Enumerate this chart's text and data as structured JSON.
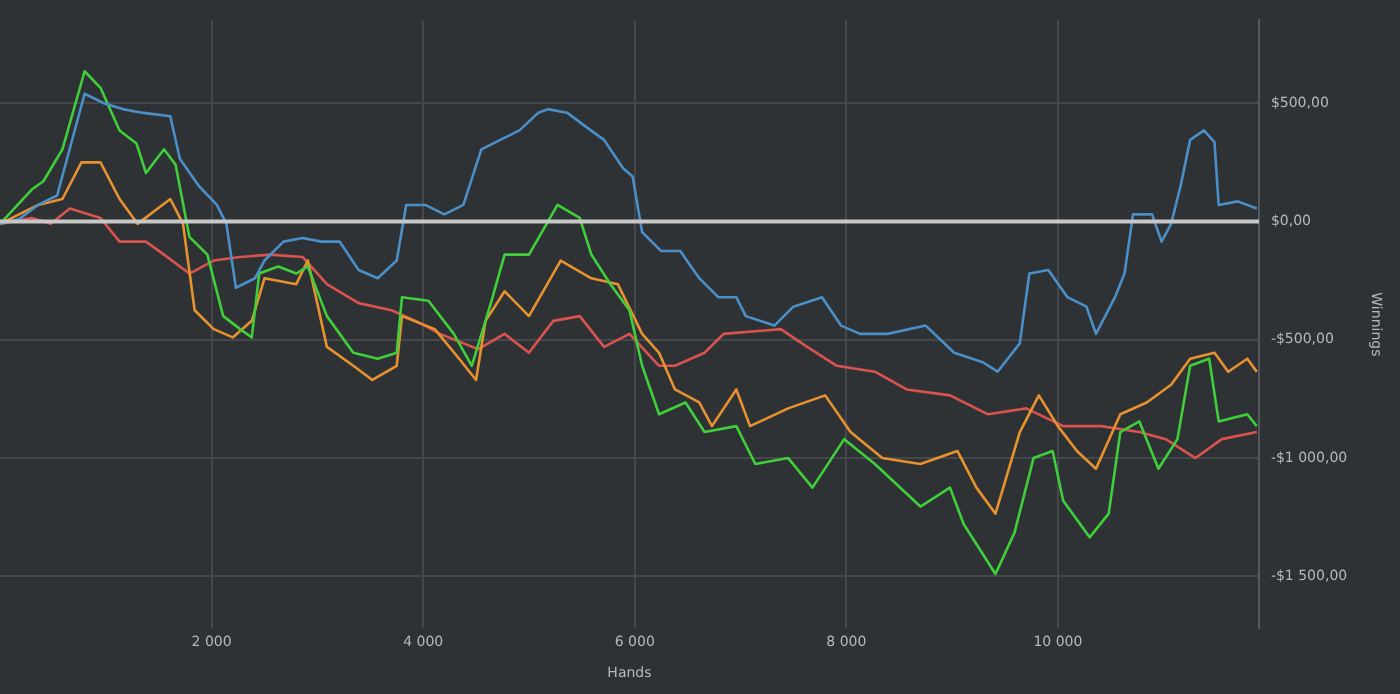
{
  "chart_data": {
    "type": "line",
    "xlabel": "Hands",
    "ylabel": "Winnings",
    "xlim": [
      0,
      11900
    ],
    "ylim": [
      -1720,
      850
    ],
    "xticks": [
      {
        "value": 2000,
        "label": "2 000"
      },
      {
        "value": 4000,
        "label": "4 000"
      },
      {
        "value": 6000,
        "label": "6 000"
      },
      {
        "value": 8000,
        "label": "8 000"
      },
      {
        "value": 10000,
        "label": "10 000"
      }
    ],
    "yticks": [
      {
        "value": -1500,
        "label": "-$1 500,00"
      },
      {
        "value": -1000,
        "label": "-$1 000,00"
      },
      {
        "value": -500,
        "label": "-$500,00"
      },
      {
        "value": 0,
        "label": "$0,00"
      },
      {
        "value": 500,
        "label": "$500,00"
      }
    ],
    "grid": true,
    "legend": false,
    "marker": "none",
    "line_style": "solid",
    "ref_lines": [
      {
        "axis": "y",
        "value": 0,
        "label": null,
        "color": "#c8c8c8"
      }
    ],
    "series": [
      {
        "color": "#4a8fc7",
        "x": [
          0,
          180,
          360,
          540,
          800,
          980,
          1160,
          1340,
          1610,
          1700,
          1880,
          2050,
          2140,
          2230,
          2410,
          2500,
          2680,
          2860,
          3040,
          3210,
          3390,
          3570,
          3750,
          3840,
          4020,
          4200,
          4380,
          4550,
          4730,
          4910,
          5090,
          5180,
          5360,
          5540,
          5710,
          5890,
          5980,
          6070,
          6250,
          6430,
          6610,
          6790,
          6960,
          7050,
          7320,
          7500,
          7770,
          7950,
          8130,
          8390,
          8750,
          9020,
          9290,
          9430,
          9640,
          9730,
          9910,
          10090,
          10270,
          10360,
          10540,
          10630,
          10710,
          10890,
          10980,
          11070,
          11160,
          11250,
          11380,
          11480,
          11520,
          11700,
          11880
        ],
        "values": [
          -10,
          10,
          70,
          110,
          540,
          500,
          475,
          460,
          445,
          265,
          150,
          70,
          -10,
          -280,
          -240,
          -165,
          -85,
          -70,
          -85,
          -85,
          -205,
          -240,
          -165,
          70,
          70,
          30,
          70,
          305,
          345,
          385,
          460,
          475,
          460,
          400,
          345,
          225,
          190,
          -45,
          -125,
          -125,
          -240,
          -320,
          -320,
          -400,
          -440,
          -360,
          -320,
          -440,
          -475,
          -475,
          -440,
          -555,
          -595,
          -635,
          -515,
          -220,
          -205,
          -320,
          -360,
          -475,
          -320,
          -220,
          30,
          30,
          -85,
          -10,
          150,
          345,
          385,
          335,
          70,
          85,
          55
        ]
      },
      {
        "color": "#3fcf3a",
        "x": [
          0,
          300,
          410,
          590,
          800,
          950,
          1130,
          1290,
          1380,
          1550,
          1660,
          1790,
          1960,
          2110,
          2270,
          2380,
          2450,
          2630,
          2800,
          2910,
          3090,
          3340,
          3570,
          3750,
          3800,
          4050,
          4290,
          4460,
          4640,
          4770,
          5000,
          5270,
          5480,
          5590,
          5770,
          5950,
          6070,
          6230,
          6480,
          6660,
          6960,
          7140,
          7450,
          7680,
          7980,
          8270,
          8700,
          8980,
          9110,
          9410,
          9590,
          9770,
          9950,
          10050,
          10300,
          10480,
          10590,
          10770,
          10950,
          11130,
          11250,
          11430,
          11520,
          11790,
          11880
        ],
        "values": [
          -10,
          135,
          170,
          305,
          635,
          565,
          385,
          330,
          205,
          305,
          240,
          -65,
          -140,
          -400,
          -455,
          -490,
          -220,
          -190,
          -220,
          -190,
          -400,
          -555,
          -580,
          -555,
          -320,
          -335,
          -475,
          -610,
          -345,
          -140,
          -140,
          70,
          15,
          -140,
          -265,
          -375,
          -610,
          -815,
          -765,
          -890,
          -865,
          -1025,
          -1000,
          -1125,
          -920,
          -1025,
          -1205,
          -1125,
          -1280,
          -1490,
          -1315,
          -1000,
          -970,
          -1180,
          -1335,
          -1235,
          -890,
          -845,
          -1045,
          -920,
          -610,
          -580,
          -845,
          -815,
          -865
        ]
      },
      {
        "color": "#e8922f",
        "x": [
          0,
          360,
          590,
          770,
          950,
          1130,
          1300,
          1610,
          1730,
          1840,
          2020,
          2200,
          2380,
          2500,
          2800,
          2910,
          3090,
          3340,
          3520,
          3750,
          3800,
          4110,
          4340,
          4500,
          4590,
          4770,
          5000,
          5300,
          5590,
          5840,
          6070,
          6230,
          6380,
          6610,
          6730,
          6960,
          7090,
          7450,
          7800,
          8040,
          8340,
          8700,
          9050,
          9230,
          9410,
          9640,
          9820,
          10000,
          10180,
          10360,
          10590,
          10840,
          11070,
          11250,
          11480,
          11610,
          11790,
          11880
        ],
        "values": [
          -10,
          70,
          95,
          250,
          250,
          95,
          -10,
          95,
          -10,
          -375,
          -455,
          -490,
          -420,
          -240,
          -265,
          -165,
          -530,
          -610,
          -670,
          -610,
          -400,
          -455,
          -580,
          -670,
          -420,
          -295,
          -400,
          -165,
          -240,
          -265,
          -475,
          -555,
          -710,
          -765,
          -865,
          -710,
          -865,
          -790,
          -735,
          -890,
          -1000,
          -1025,
          -970,
          -1125,
          -1235,
          -890,
          -735,
          -865,
          -970,
          -1045,
          -815,
          -765,
          -690,
          -580,
          -555,
          -635,
          -580,
          -635
        ]
      },
      {
        "color": "#d9534f",
        "x": [
          0,
          300,
          480,
          660,
          950,
          1130,
          1380,
          1550,
          1790,
          2020,
          2270,
          2550,
          2860,
          3090,
          3390,
          3700,
          3930,
          4160,
          4520,
          4770,
          5000,
          5230,
          5480,
          5710,
          5950,
          6230,
          6380,
          6660,
          6840,
          7380,
          7630,
          7910,
          8270,
          8570,
          8980,
          9340,
          9700,
          10050,
          10410,
          10770,
          11020,
          11300,
          11550,
          11880
        ],
        "values": [
          -10,
          15,
          -10,
          55,
          15,
          -85,
          -85,
          -140,
          -220,
          -165,
          -150,
          -140,
          -150,
          -265,
          -345,
          -375,
          -420,
          -475,
          -540,
          -475,
          -555,
          -420,
          -400,
          -530,
          -475,
          -610,
          -610,
          -555,
          -475,
          -455,
          -530,
          -610,
          -635,
          -710,
          -735,
          -815,
          -790,
          -865,
          -865,
          -890,
          -920,
          -1000,
          -920,
          -890
        ]
      }
    ]
  }
}
